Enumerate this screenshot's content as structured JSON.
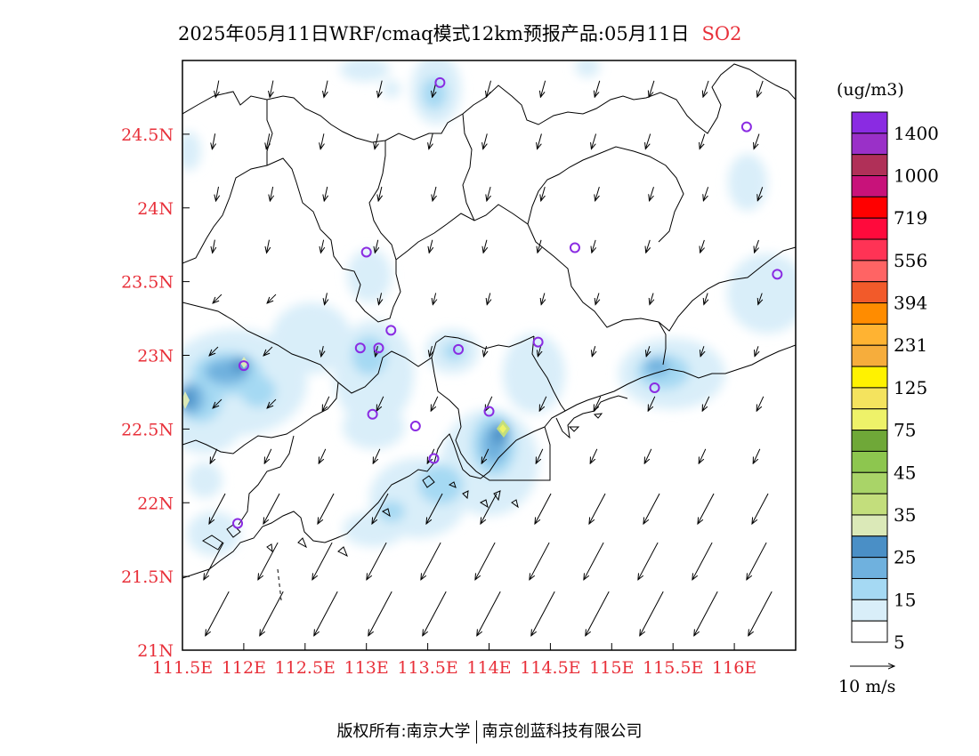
{
  "title": {
    "main": "2025年05月11日WRF/cmaq模式12km预报产品:05月11日",
    "pollutant": "SO2",
    "pollutant_color": "#e8303a"
  },
  "axes": {
    "lat_ticks": [
      "24.5N",
      "24N",
      "23.5N",
      "23N",
      "22.5N",
      "22N",
      "21.5N",
      "21N"
    ],
    "lat_values": [
      24.5,
      24.0,
      23.5,
      23.0,
      22.5,
      22.0,
      21.5,
      21.0
    ],
    "lon_ticks": [
      "111.5E",
      "112E",
      "112.5E",
      "113E",
      "113.5E",
      "114E",
      "114.5E",
      "115E",
      "115.5E",
      "116E"
    ],
    "lon_values": [
      111.5,
      112.0,
      112.5,
      113.0,
      113.5,
      114.0,
      114.5,
      115.0,
      115.5,
      116.0
    ],
    "lon_range": [
      111.5,
      116.5
    ],
    "lat_range": [
      21.0,
      25.0
    ],
    "label_color": "#e8303a"
  },
  "colorbar": {
    "unit": "(ug/m3)",
    "labels": [
      "5",
      "15",
      "25",
      "35",
      "45",
      "75",
      "125",
      "231",
      "394",
      "556",
      "719",
      "1000",
      "1400"
    ],
    "colors": [
      "#ffffff",
      "#d9eef9",
      "#a5d9f3",
      "#6fb1de",
      "#4a8fc6",
      "#dbe9b8",
      "#c3de7c",
      "#a9d468",
      "#8dc64f",
      "#6fa838",
      "#eef269",
      "#f4e35e",
      "#fff200",
      "#f6ad3c",
      "#ffb332",
      "#ff8c00",
      "#f25a2a",
      "#ff6464",
      "#ff3355",
      "#ff0a3c",
      "#ff0000",
      "#c8127a",
      "#b03058",
      "#9a30c8",
      "#8a2be2"
    ]
  },
  "wind_legend": {
    "label": "10 m/s"
  },
  "stations": [
    {
      "lon": 113.6,
      "lat": 24.85
    },
    {
      "lon": 116.1,
      "lat": 24.55
    },
    {
      "lon": 113.0,
      "lat": 23.7
    },
    {
      "lon": 114.7,
      "lat": 23.73
    },
    {
      "lon": 116.35,
      "lat": 23.55
    },
    {
      "lon": 113.2,
      "lat": 23.17
    },
    {
      "lon": 112.95,
      "lat": 23.05
    },
    {
      "lon": 113.1,
      "lat": 23.05
    },
    {
      "lon": 113.75,
      "lat": 23.04
    },
    {
      "lon": 114.4,
      "lat": 23.09
    },
    {
      "lon": 112.0,
      "lat": 22.93
    },
    {
      "lon": 115.35,
      "lat": 22.78
    },
    {
      "lon": 113.05,
      "lat": 22.6
    },
    {
      "lon": 113.4,
      "lat": 22.52
    },
    {
      "lon": 114.0,
      "lat": 22.62
    },
    {
      "lon": 113.55,
      "lat": 22.3
    },
    {
      "lon": 111.95,
      "lat": 21.86
    }
  ],
  "footer": {
    "left": "版权所有:南京大学",
    "right": "南京创蓝科技有限公司"
  }
}
